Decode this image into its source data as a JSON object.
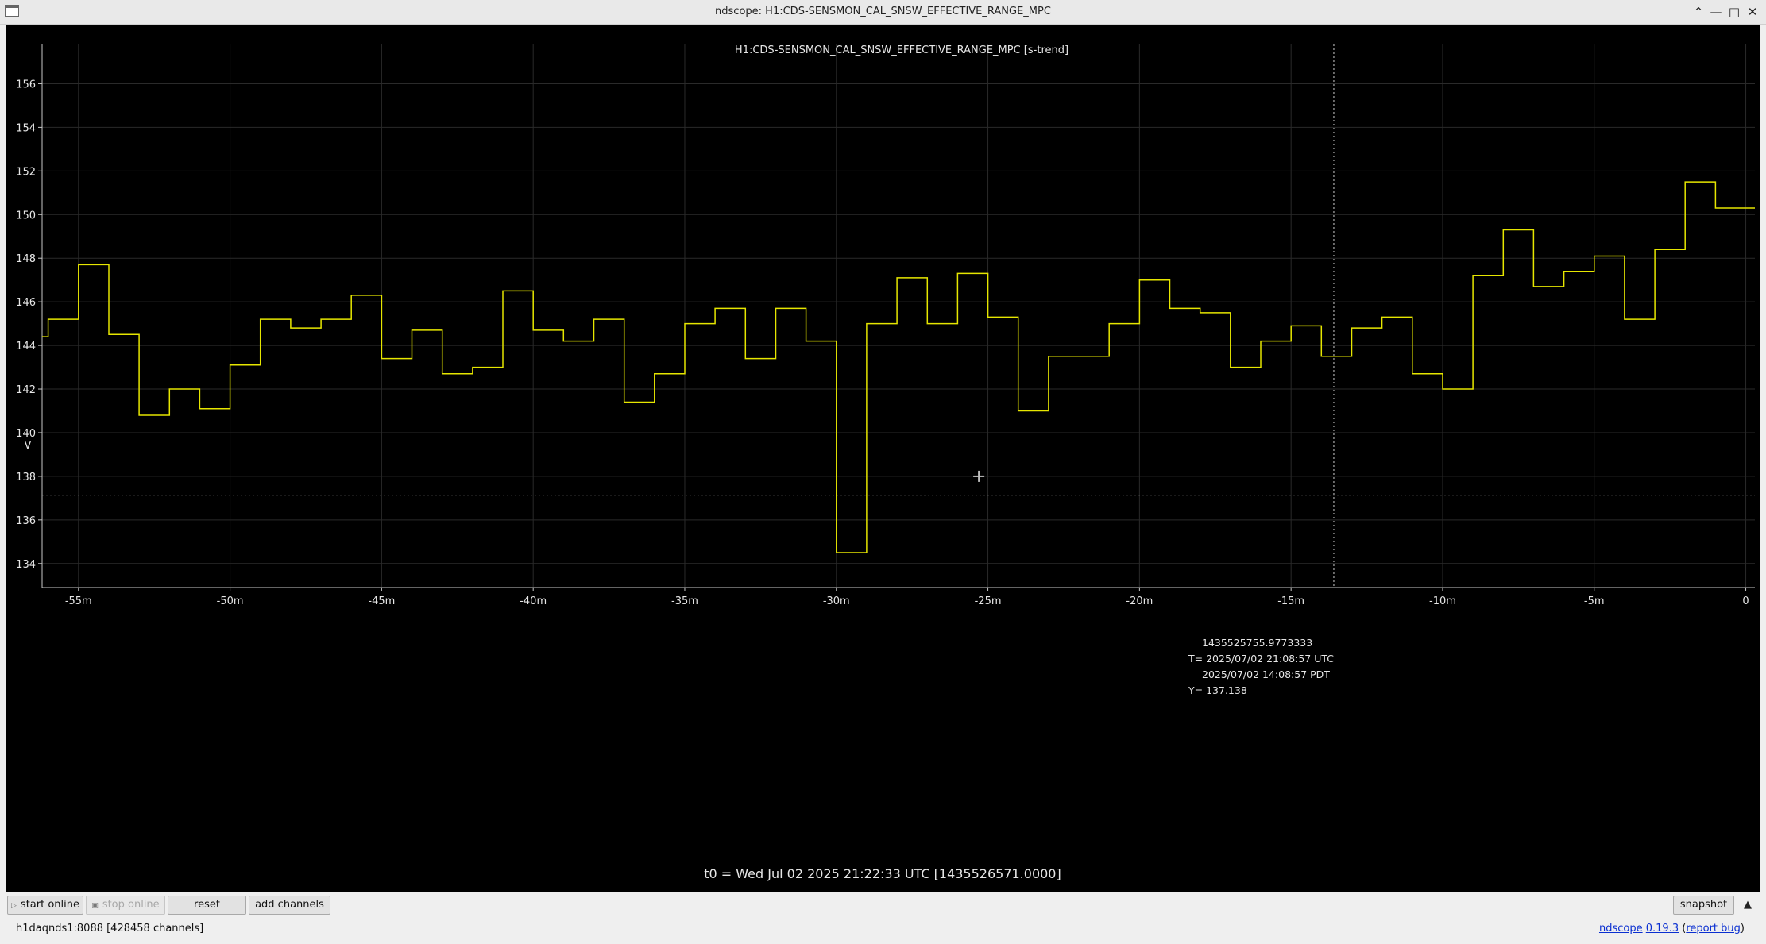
{
  "window": {
    "title": "ndscope: H1:CDS-SENSMON_CAL_SNSW_EFFECTIVE_RANGE_MPC",
    "minimize_icon": "chevron-down-icon",
    "restore_icon": "chevron-up-icon",
    "maximize_icon": "maximize-icon",
    "close_icon": "close-icon"
  },
  "plot": {
    "title": "H1:CDS-SENSMON_CAL_SNSW_EFFECTIVE_RANGE_MPC [s-trend]",
    "ylabel": "V",
    "t0_label": "t0 = Wed Jul 02 2025 21:22:33 UTC [1435526571.0000]",
    "colors": {
      "background": "#000000",
      "trace": "#e6e600",
      "grid": "#2a2a2a",
      "axis": "#c8c8c8",
      "text": "#e6e6e6",
      "cursor": "#cfcfcf"
    }
  },
  "cursor": {
    "gps": "1435525755.9773333",
    "utc": "T= 2025/07/02 21:08:57 UTC",
    "pdt": "2025/07/02 14:08:57 PDT",
    "y": "Y= 137.138",
    "t_minutes": -13.59,
    "y_value": 137.138,
    "crosshair_t_minutes": -25.3,
    "crosshair_y_value": 138.0
  },
  "chart_data": {
    "type": "line",
    "title": "H1:CDS-SENSMON_CAL_SNSW_EFFECTIVE_RANGE_MPC [s-trend]",
    "xlabel": "",
    "ylabel": "V",
    "xlim": [
      -56.2,
      0.3
    ],
    "ylim": [
      132.9,
      157.8
    ],
    "x_ticks": [
      {
        "v": -55,
        "label": "-55m"
      },
      {
        "v": -50,
        "label": "-50m"
      },
      {
        "v": -45,
        "label": "-45m"
      },
      {
        "v": -40,
        "label": "-40m"
      },
      {
        "v": -35,
        "label": "-35m"
      },
      {
        "v": -30,
        "label": "-30m"
      },
      {
        "v": -25,
        "label": "-25m"
      },
      {
        "v": -20,
        "label": "-20m"
      },
      {
        "v": -15,
        "label": "-15m"
      },
      {
        "v": -10,
        "label": "-10m"
      },
      {
        "v": -5,
        "label": "-5m"
      },
      {
        "v": 0,
        "label": "0"
      }
    ],
    "y_ticks": [
      {
        "v": 134,
        "label": "134"
      },
      {
        "v": 136,
        "label": "136"
      },
      {
        "v": 138,
        "label": "138"
      },
      {
        "v": 140,
        "label": "140"
      },
      {
        "v": 142,
        "label": "142"
      },
      {
        "v": 144,
        "label": "144"
      },
      {
        "v": 146,
        "label": "146"
      },
      {
        "v": 148,
        "label": "148"
      },
      {
        "v": 150,
        "label": "150"
      },
      {
        "v": 152,
        "label": "152"
      },
      {
        "v": 154,
        "label": "154"
      },
      {
        "v": 156,
        "label": "156"
      }
    ],
    "grid": true,
    "series": [
      {
        "step": true,
        "x": [
          -56.2,
          -56.0,
          -55.0,
          -54.0,
          -53.0,
          -52.0,
          -51.0,
          -50.0,
          -49.0,
          -48.0,
          -47.0,
          -46.0,
          -45.0,
          -44.0,
          -43.0,
          -42.0,
          -41.0,
          -40.0,
          -39.0,
          -38.0,
          -37.0,
          -36.0,
          -35.0,
          -34.0,
          -33.0,
          -32.0,
          -31.0,
          -30.0,
          -29.0,
          -28.0,
          -27.0,
          -26.0,
          -25.0,
          -24.0,
          -23.0,
          -22.0,
          -21.0,
          -20.0,
          -19.0,
          -18.0,
          -17.0,
          -16.0,
          -15.0,
          -14.0,
          -13.0,
          -12.0,
          -11.0,
          -10.0,
          -9.0,
          -8.0,
          -7.0,
          -6.0,
          -5.0,
          -4.0,
          -3.0,
          -2.0,
          -1.0,
          0.0
        ],
        "y": [
          144.4,
          145.2,
          147.7,
          144.5,
          140.8,
          142.0,
          141.1,
          143.1,
          145.2,
          144.8,
          145.2,
          146.3,
          143.4,
          144.7,
          142.7,
          143.0,
          146.5,
          144.7,
          144.2,
          145.2,
          141.4,
          142.7,
          145.0,
          145.7,
          143.4,
          145.7,
          144.2,
          134.5,
          145.0,
          147.1,
          145.0,
          147.3,
          145.3,
          141.0,
          143.5,
          143.5,
          145.0,
          147.0,
          145.7,
          145.5,
          143.0,
          144.2,
          144.9,
          143.5,
          144.8,
          145.3,
          142.7,
          142.0,
          147.2,
          149.3,
          146.7,
          147.4,
          148.1,
          145.2,
          148.4,
          151.5,
          150.3,
          150.3
        ]
      }
    ]
  },
  "toolbar": {
    "start_online": "start online",
    "stop_online": "stop online",
    "reset": "reset",
    "add_channels": "add channels",
    "snapshot": "snapshot",
    "play_icon": "play-icon",
    "stop_icon": "stop-icon"
  },
  "status": {
    "server": "h1daqnds1:8088  [428458 channels]",
    "app_name": "ndscope",
    "version": "0.19.3",
    "report_open": "(",
    "report_bug": "report bug",
    "report_close": ")"
  }
}
